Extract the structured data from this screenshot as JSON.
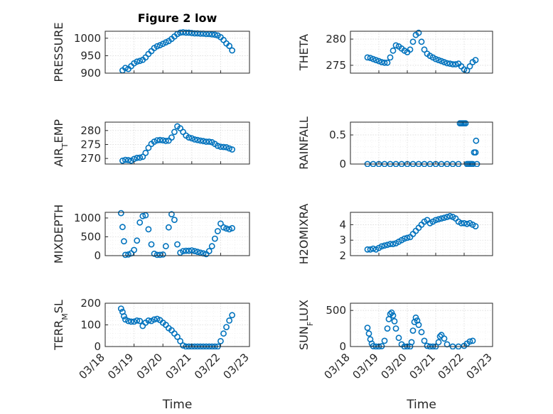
{
  "figure": {
    "title": "Figure 2 low",
    "marker_color": "#0072BD",
    "x_ticks": [
      "03/18",
      "03/19",
      "03/20",
      "03/21",
      "03/22",
      "03/23"
    ]
  },
  "chart_data": [
    {
      "type": "scatter",
      "ylabel": "PRESSURE",
      "xlabel": "",
      "title": "Figure 2 low",
      "ylim": [
        900,
        1020
      ],
      "yticks": [
        "900",
        "950",
        "1000"
      ],
      "xlim": [
        18,
        23
      ],
      "grid": true,
      "x": [
        18.6,
        18.7,
        18.8,
        18.9,
        19.0,
        19.1,
        19.2,
        19.3,
        19.4,
        19.5,
        19.6,
        19.7,
        19.8,
        19.9,
        20.0,
        20.1,
        20.2,
        20.3,
        20.4,
        20.5,
        20.6,
        20.7,
        20.8,
        20.9,
        21.0,
        21.1,
        21.2,
        21.3,
        21.4,
        21.5,
        21.6,
        21.7,
        21.8,
        21.9,
        22.0,
        22.1,
        22.2,
        22.3,
        22.4
      ],
      "y": [
        908,
        915,
        912,
        920,
        928,
        933,
        935,
        938,
        945,
        955,
        963,
        972,
        977,
        980,
        984,
        988,
        992,
        998,
        1005,
        1012,
        1016,
        1017,
        1016,
        1016,
        1015,
        1014,
        1014,
        1013,
        1013,
        1012,
        1012,
        1011,
        1010,
        1008,
        1003,
        995,
        985,
        978,
        965
      ]
    },
    {
      "type": "scatter",
      "ylabel": "THETA",
      "xlabel": "",
      "ylim": [
        273.5,
        281.5
      ],
      "yticks": [
        "275",
        "280"
      ],
      "xlim": [
        18,
        23
      ],
      "grid": true,
      "x": [
        18.6,
        18.7,
        18.8,
        18.9,
        19.0,
        19.1,
        19.2,
        19.3,
        19.4,
        19.5,
        19.6,
        19.7,
        19.8,
        19.9,
        20.0,
        20.1,
        20.2,
        20.3,
        20.4,
        20.5,
        20.6,
        20.7,
        20.8,
        20.9,
        21.0,
        21.1,
        21.2,
        21.3,
        21.4,
        21.5,
        21.6,
        21.7,
        21.8,
        21.9,
        22.0,
        22.1,
        22.2,
        22.3,
        22.4
      ],
      "y": [
        276.5,
        276.4,
        276.2,
        276.0,
        275.8,
        275.6,
        275.5,
        275.5,
        276.5,
        277.8,
        278.8,
        278.6,
        278.2,
        277.8,
        277.5,
        278.0,
        279.5,
        280.8,
        281.2,
        279.5,
        278.0,
        277.2,
        276.8,
        276.5,
        276.2,
        276.0,
        275.8,
        275.6,
        275.4,
        275.3,
        275.2,
        275.2,
        275.3,
        274.8,
        274.2,
        274.0,
        274.8,
        275.6,
        276.0
      ]
    },
    {
      "type": "scatter",
      "ylabel": "AIR_TEMP",
      "xlabel": "",
      "ylim": [
        268,
        283
      ],
      "yticks": [
        "270",
        "275",
        "280"
      ],
      "xlim": [
        18,
        23
      ],
      "grid": true,
      "x": [
        18.6,
        18.7,
        18.8,
        18.9,
        19.0,
        19.1,
        19.2,
        19.3,
        19.4,
        19.5,
        19.6,
        19.7,
        19.8,
        19.9,
        20.0,
        20.1,
        20.2,
        20.3,
        20.4,
        20.5,
        20.6,
        20.7,
        20.8,
        20.9,
        21.0,
        21.1,
        21.2,
        21.3,
        21.4,
        21.5,
        21.6,
        21.7,
        21.8,
        21.9,
        22.0,
        22.1,
        22.2,
        22.3,
        22.4
      ],
      "y": [
        269.2,
        269.5,
        269.4,
        269.2,
        269.8,
        270.2,
        270.3,
        270.6,
        272.0,
        273.8,
        275.2,
        276.0,
        276.5,
        276.6,
        276.5,
        276.3,
        276.4,
        277.5,
        279.5,
        281.5,
        280.8,
        279.5,
        278.2,
        277.5,
        277.2,
        276.8,
        276.6,
        276.4,
        276.2,
        276.0,
        276.0,
        275.8,
        275.2,
        274.5,
        274.2,
        274.1,
        274.0,
        273.6,
        273.2
      ]
    },
    {
      "type": "scatter",
      "ylabel": "RAINFALL",
      "xlabel": "",
      "ylim": [
        0,
        0.72
      ],
      "yticks": [
        "0",
        "0.5"
      ],
      "xlim": [
        18,
        23
      ],
      "grid": true,
      "x": [
        18.6,
        18.8,
        19.0,
        19.2,
        19.4,
        19.6,
        19.8,
        20.0,
        20.2,
        20.4,
        20.6,
        20.8,
        21.0,
        21.2,
        21.4,
        21.6,
        21.8,
        21.85,
        21.9,
        21.95,
        22.0,
        22.05,
        22.1,
        22.15,
        22.2,
        22.25,
        22.3,
        22.35,
        22.4,
        22.42,
        22.45
      ],
      "y": [
        0,
        0,
        0,
        0,
        0,
        0,
        0,
        0,
        0,
        0,
        0,
        0,
        0,
        0,
        0,
        0,
        0,
        0.7,
        0.7,
        0.7,
        0.7,
        0.7,
        0,
        0,
        0,
        0,
        0,
        0.2,
        0.2,
        0.4,
        0
      ]
    },
    {
      "type": "scatter",
      "ylabel": "MIXDEPTH",
      "xlabel": "",
      "ylim": [
        0,
        1150
      ],
      "yticks": [
        "0",
        "500",
        "1000"
      ],
      "xlim": [
        18,
        23
      ],
      "grid": true,
      "x": [
        18.55,
        18.6,
        18.65,
        18.7,
        18.8,
        18.9,
        19.0,
        19.1,
        19.2,
        19.3,
        19.4,
        19.5,
        19.6,
        19.7,
        19.8,
        19.9,
        20.0,
        20.1,
        20.2,
        20.3,
        20.4,
        20.5,
        20.6,
        20.7,
        20.8,
        20.9,
        21.0,
        21.1,
        21.2,
        21.3,
        21.4,
        21.5,
        21.6,
        21.7,
        21.8,
        21.9,
        22.0,
        22.1,
        22.2,
        22.3,
        22.4
      ],
      "y": [
        1130,
        760,
        380,
        20,
        30,
        60,
        150,
        400,
        880,
        1050,
        1070,
        700,
        300,
        50,
        20,
        20,
        30,
        250,
        750,
        1100,
        950,
        300,
        80,
        120,
        130,
        130,
        140,
        120,
        100,
        80,
        60,
        40,
        120,
        250,
        450,
        650,
        850,
        750,
        720,
        700,
        730
      ]
    },
    {
      "type": "scatter",
      "ylabel": "H2OMIXRA",
      "xlabel": "",
      "ylim": [
        2,
        4.8
      ],
      "yticks": [
        "2",
        "3",
        "4"
      ],
      "xlim": [
        18,
        23
      ],
      "grid": true,
      "x": [
        18.6,
        18.7,
        18.8,
        18.9,
        19.0,
        19.1,
        19.2,
        19.3,
        19.4,
        19.5,
        19.6,
        19.7,
        19.8,
        19.9,
        20.0,
        20.1,
        20.2,
        20.3,
        20.4,
        20.5,
        20.6,
        20.7,
        20.8,
        20.9,
        21.0,
        21.1,
        21.2,
        21.3,
        21.4,
        21.5,
        21.6,
        21.7,
        21.8,
        21.9,
        22.0,
        22.1,
        22.2,
        22.3,
        22.4
      ],
      "y": [
        2.4,
        2.4,
        2.45,
        2.4,
        2.5,
        2.6,
        2.65,
        2.7,
        2.75,
        2.75,
        2.8,
        2.9,
        3.0,
        3.1,
        3.15,
        3.2,
        3.4,
        3.6,
        3.8,
        4.0,
        4.2,
        4.3,
        4.1,
        4.2,
        4.3,
        4.35,
        4.4,
        4.45,
        4.5,
        4.55,
        4.5,
        4.4,
        4.2,
        4.1,
        4.1,
        4.05,
        4.1,
        4.0,
        3.9
      ]
    },
    {
      "type": "scatter",
      "ylabel": "TERR_MSL",
      "xlabel": "Time",
      "ylim": [
        0,
        200
      ],
      "yticks": [
        "0",
        "100",
        "200"
      ],
      "xlim": [
        18,
        23
      ],
      "grid": true,
      "x": [
        18.55,
        18.6,
        18.65,
        18.7,
        18.8,
        18.9,
        19.0,
        19.1,
        19.2,
        19.3,
        19.4,
        19.5,
        19.6,
        19.7,
        19.8,
        19.9,
        20.0,
        20.1,
        20.2,
        20.3,
        20.4,
        20.5,
        20.6,
        20.7,
        20.8,
        20.9,
        21.0,
        21.1,
        21.2,
        21.3,
        21.4,
        21.5,
        21.6,
        21.7,
        21.8,
        21.9,
        22.0,
        22.1,
        22.2,
        22.3,
        22.4
      ],
      "y": [
        175,
        160,
        140,
        125,
        118,
        115,
        115,
        120,
        118,
        95,
        110,
        120,
        118,
        125,
        128,
        122,
        110,
        100,
        85,
        75,
        60,
        45,
        25,
        5,
        0,
        0,
        0,
        0,
        0,
        0,
        0,
        0,
        0,
        0,
        0,
        0,
        25,
        60,
        90,
        120,
        145
      ]
    },
    {
      "type": "scatter",
      "ylabel": "SUN_FLUX",
      "xlabel": "Time",
      "ylim": [
        0,
        600
      ],
      "yticks": [
        "0",
        "500"
      ],
      "xlim": [
        18,
        23
      ],
      "grid": true,
      "x": [
        18.6,
        18.65,
        18.7,
        18.75,
        18.8,
        18.9,
        19.0,
        19.1,
        19.2,
        19.3,
        19.35,
        19.4,
        19.45,
        19.5,
        19.55,
        19.6,
        19.7,
        19.8,
        19.9,
        20.0,
        20.1,
        20.15,
        20.2,
        20.25,
        20.3,
        20.35,
        20.4,
        20.5,
        20.6,
        20.7,
        20.8,
        20.9,
        21.0,
        21.1,
        21.15,
        21.2,
        21.3,
        21.4,
        21.6,
        21.8,
        22.0,
        22.1,
        22.2,
        22.3
      ],
      "y": [
        260,
        180,
        100,
        40,
        5,
        0,
        0,
        5,
        80,
        250,
        380,
        450,
        470,
        430,
        350,
        250,
        120,
        30,
        0,
        0,
        0,
        60,
        220,
        340,
        400,
        360,
        300,
        200,
        80,
        10,
        0,
        0,
        0,
        60,
        140,
        160,
        110,
        30,
        0,
        0,
        10,
        40,
        70,
        80
      ]
    }
  ]
}
